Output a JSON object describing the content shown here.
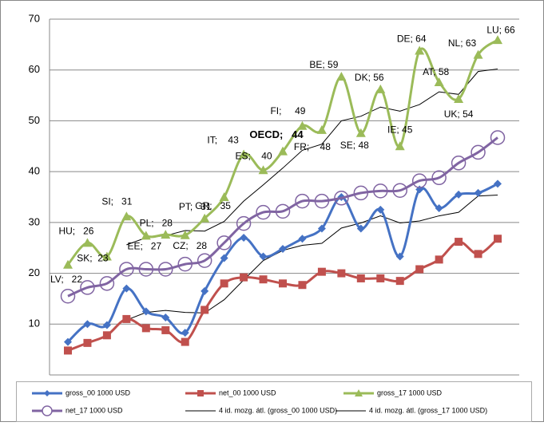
{
  "chart_data": {
    "type": "line",
    "ylim": [
      0,
      70
    ],
    "yticks": [
      10,
      20,
      30,
      40,
      50,
      60,
      70
    ],
    "grid": true,
    "series": [
      {
        "name": "gross_00 1000 USD",
        "color": "#4572c4",
        "marker": "diamond",
        "values": [
          6.5,
          10,
          9.8,
          17,
          12.5,
          11.3,
          8.3,
          16.5,
          23,
          27,
          23.3,
          24.8,
          26.8,
          28.8,
          35,
          28.8,
          32.5,
          23.3,
          36.5,
          32.8,
          35.5,
          35.8,
          37.6
        ]
      },
      {
        "name": "net_00 1000 USD",
        "color": "#c0504d",
        "marker": "square",
        "values": [
          4.8,
          6.3,
          7.8,
          11,
          9.2,
          8.8,
          6.5,
          12.8,
          18,
          19.2,
          18.8,
          18,
          17.7,
          20.3,
          20,
          19,
          19,
          18.5,
          20.8,
          22.7,
          26.2,
          23.8,
          26.8
        ]
      },
      {
        "name": "gross_17 1000 USD",
        "color": "#9bbb59",
        "marker": "triangle",
        "values": [
          21.7,
          26,
          23.3,
          31.2,
          27.4,
          27.6,
          27.5,
          30.8,
          35,
          43.4,
          40.3,
          44,
          49,
          48.2,
          58.7,
          47.6,
          56.2,
          45,
          63.8,
          57.6,
          54.3,
          63,
          65.9
        ],
        "value_labels": [
          "LV;   22",
          "HU;   26",
          "SK;  23",
          "SI;   31",
          "EE;   27",
          "PL;   28",
          "CZ;   28",
          "PT;   31",
          "GR;   35",
          "IT;    43",
          "ES;    40",
          "OECD;   44",
          "FI;     49",
          "FR;    48",
          "BE; 59",
          "SE; 48",
          "DK; 56",
          "IE; 45",
          "DE; 64",
          "AT; 58",
          "UK; 54",
          "NL; 63",
          "LU; 66"
        ]
      },
      {
        "name": "net_17 1000 USD",
        "color": "#8064a2",
        "marker": "circle",
        "values": [
          15.5,
          17.2,
          18,
          20.8,
          20.8,
          20.8,
          21.8,
          22.5,
          26,
          29.8,
          32,
          32.2,
          34.2,
          34.2,
          34.8,
          35.8,
          36.2,
          36.3,
          38.2,
          38.8,
          41.7,
          43.8,
          46.7
        ]
      },
      {
        "name": "4 id. mozg. átl. (gross_00 1000 USD)",
        "color": "#000000",
        "marker": "none",
        "values": [
          null,
          null,
          null,
          10.8,
          12.3,
          12.7,
          12.3,
          12.2,
          14.8,
          18.7,
          22.5,
          24.5,
          25.5,
          25.9,
          28.9,
          29.9,
          31.3,
          29.9,
          30.3,
          31.3,
          32.0,
          35.2,
          35.4
        ]
      },
      {
        "name": "4 id. mozg. átl. (gross_17 1000 USD)",
        "color": "#000000",
        "marker": "none",
        "values": [
          null,
          null,
          null,
          25.6,
          27.0,
          27.4,
          28.4,
          28.3,
          30.2,
          34.2,
          37.4,
          40.7,
          44.2,
          45.4,
          50.0,
          50.9,
          52.7,
          51.9,
          53.2,
          55.7,
          55.2,
          59.7,
          60.2
        ]
      }
    ]
  }
}
